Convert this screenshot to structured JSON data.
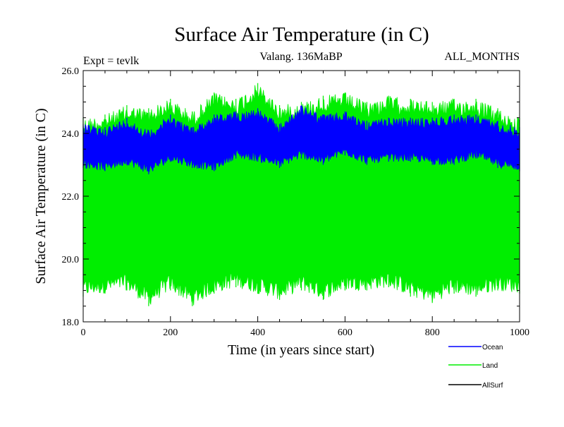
{
  "chart_data": {
    "type": "line",
    "title": "Surface Air Temperature (in C)",
    "subtitle_left": "Expt = tevlk",
    "subtitle_center": "Valang. 136MaBP",
    "subtitle_right": "ALL_MONTHS",
    "xlabel": "Time (in years since start)",
    "ylabel": "Surface Air Temperature (in C)",
    "xlim": [
      0,
      1000
    ],
    "ylim": [
      18.0,
      26.0
    ],
    "x_ticks": [
      0,
      200,
      400,
      600,
      800,
      1000
    ],
    "y_ticks": [
      18.0,
      20.0,
      22.0,
      24.0,
      26.0
    ],
    "x_tick_labels": [
      "0",
      "200",
      "400",
      "600",
      "800",
      "1000"
    ],
    "y_tick_labels": [
      "18.0",
      "20.0",
      "22.0",
      "24.0",
      "26.0"
    ],
    "legend_position": "bottom-right",
    "series": [
      {
        "name": "Land",
        "color": "#00ee00",
        "x": [
          0,
          50,
          100,
          150,
          200,
          250,
          300,
          350,
          400,
          450,
          500,
          550,
          600,
          650,
          700,
          750,
          800,
          850,
          900,
          950,
          1000
        ],
        "upper": [
          24.5,
          24.6,
          24.9,
          24.8,
          25.1,
          24.7,
          25.3,
          25.1,
          25.6,
          24.9,
          25.0,
          25.2,
          25.3,
          25.0,
          25.2,
          25.1,
          25.0,
          25.1,
          25.1,
          24.8,
          24.5
        ],
        "lower": [
          18.8,
          18.9,
          19.0,
          18.5,
          19.0,
          18.5,
          18.9,
          19.1,
          18.9,
          18.7,
          19.0,
          18.7,
          19.0,
          19.0,
          19.1,
          18.8,
          18.6,
          18.9,
          18.8,
          19.0,
          18.9
        ]
      },
      {
        "name": "Ocean",
        "color": "#0000ff",
        "x": [
          0,
          50,
          100,
          150,
          200,
          250,
          300,
          350,
          400,
          450,
          500,
          550,
          600,
          650,
          700,
          750,
          800,
          850,
          900,
          950,
          1000
        ],
        "upper": [
          24.3,
          24.2,
          24.5,
          24.1,
          24.6,
          24.2,
          24.6,
          24.7,
          24.8,
          24.3,
          24.9,
          24.6,
          24.7,
          24.4,
          24.5,
          24.5,
          24.5,
          24.6,
          24.6,
          24.4,
          24.2
        ],
        "lower": [
          22.9,
          22.8,
          23.0,
          22.7,
          23.1,
          22.9,
          22.8,
          23.2,
          23.1,
          22.9,
          23.2,
          23.0,
          23.3,
          23.0,
          23.1,
          23.1,
          23.0,
          23.0,
          23.2,
          22.9,
          22.8
        ]
      },
      {
        "name": "AllSurf",
        "color": "#000000",
        "x": [],
        "upper": [],
        "lower": []
      }
    ],
    "legend_entries": [
      "Ocean",
      "Land",
      "AllSurf"
    ]
  }
}
